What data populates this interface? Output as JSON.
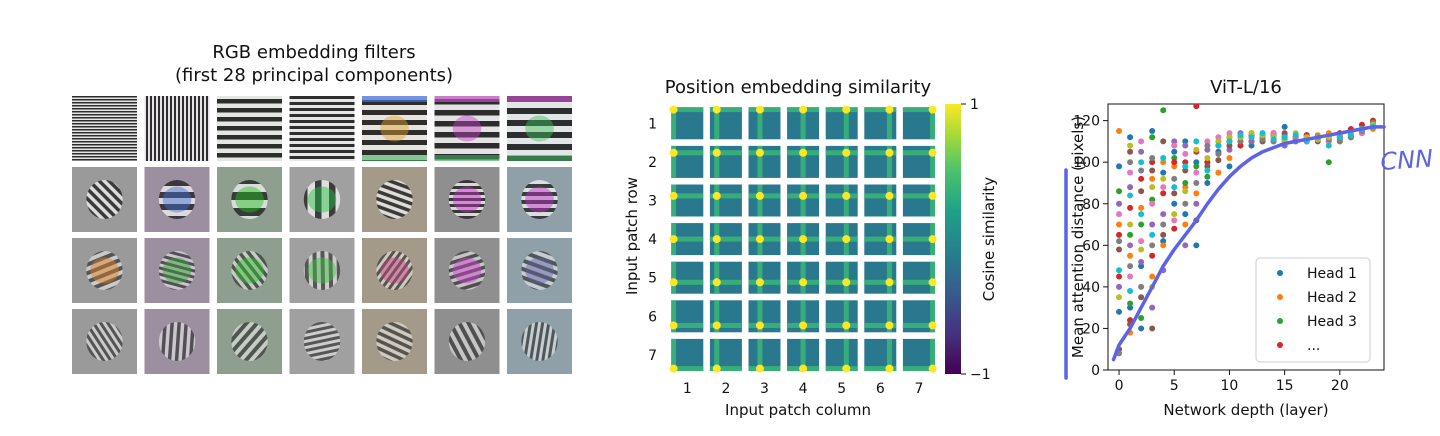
{
  "panels": {
    "filters": {
      "title_line1": "RGB embedding filters",
      "title_line2": "(first 28 principal components)",
      "rows": 4,
      "cols": 7
    },
    "position": {
      "title": "Position embedding similarity",
      "xlabel": "Input patch column",
      "ylabel": "Input patch row",
      "col_ticks": [
        "1",
        "2",
        "3",
        "4",
        "5",
        "6",
        "7"
      ],
      "row_ticks": [
        "1",
        "2",
        "3",
        "4",
        "5",
        "6",
        "7"
      ],
      "colorbar": {
        "label": "Cosine similarity",
        "max": "1",
        "min": "−1"
      }
    }
  },
  "annotation": {
    "handwritten_text": "CNN",
    "ink_color": "#5b63e6"
  },
  "chart_data": {
    "type": "scatter",
    "title": "ViT-L/16",
    "xlabel": "Network depth (layer)",
    "ylabel": "Mean attention distance (pixels)",
    "xlim": [
      -1,
      24
    ],
    "ylim": [
      0,
      128
    ],
    "xticks": [
      0,
      5,
      10,
      15,
      20
    ],
    "yticks": [
      0,
      20,
      40,
      60,
      80,
      100,
      120
    ],
    "legend_position": "bottom-right",
    "legend": [
      "Head 1",
      "Head 2",
      "Head 3",
      "..."
    ],
    "series": [
      {
        "name": "Head 1",
        "color": "#1f77b4",
        "points": [
          [
            0,
            28
          ],
          [
            0,
            98
          ],
          [
            1,
            30
          ],
          [
            1,
            112
          ],
          [
            2,
            50
          ],
          [
            2,
            20
          ],
          [
            3,
            115
          ],
          [
            4,
            62
          ],
          [
            4,
            95
          ],
          [
            5,
            80
          ],
          [
            5,
            105
          ],
          [
            6,
            75
          ],
          [
            6,
            110
          ],
          [
            7,
            60
          ],
          [
            7,
            100
          ],
          [
            8,
            90
          ],
          [
            9,
            105
          ],
          [
            10,
            98
          ],
          [
            11,
            112
          ],
          [
            12,
            108
          ],
          [
            13,
            112
          ],
          [
            14,
            114
          ],
          [
            15,
            117
          ],
          [
            16,
            110
          ],
          [
            17,
            113
          ],
          [
            18,
            112
          ],
          [
            19,
            112
          ],
          [
            20,
            113
          ],
          [
            21,
            115
          ],
          [
            22,
            116
          ],
          [
            23,
            117
          ]
        ]
      },
      {
        "name": "Head 2",
        "color": "#ff7f0e",
        "points": [
          [
            0,
            70
          ],
          [
            0,
            115
          ],
          [
            1,
            55
          ],
          [
            1,
            18
          ],
          [
            2,
            78
          ],
          [
            3,
            92
          ],
          [
            3,
            45
          ],
          [
            4,
            100
          ],
          [
            4,
            60
          ],
          [
            5,
            98
          ],
          [
            6,
            88
          ],
          [
            6,
            70
          ],
          [
            7,
            85
          ],
          [
            8,
            100
          ],
          [
            9,
            95
          ],
          [
            10,
            102
          ],
          [
            11,
            108
          ],
          [
            12,
            110
          ],
          [
            13,
            112
          ],
          [
            14,
            112
          ],
          [
            15,
            113
          ],
          [
            16,
            110
          ],
          [
            17,
            112
          ],
          [
            18,
            113
          ],
          [
            19,
            114
          ],
          [
            20,
            110
          ],
          [
            21,
            112
          ],
          [
            22,
            114
          ],
          [
            23,
            116
          ]
        ]
      },
      {
        "name": "Head 3",
        "color": "#2ca02c",
        "points": [
          [
            0,
            86
          ],
          [
            1,
            32
          ],
          [
            1,
            65
          ],
          [
            2,
            25
          ],
          [
            2,
            70
          ],
          [
            3,
            112
          ],
          [
            3,
            82
          ],
          [
            4,
            125
          ],
          [
            5,
            102
          ],
          [
            6,
            90
          ],
          [
            7,
            98
          ],
          [
            8,
            93
          ],
          [
            9,
            108
          ],
          [
            10,
            110
          ],
          [
            11,
            112
          ],
          [
            12,
            110
          ],
          [
            13,
            110
          ],
          [
            14,
            112
          ],
          [
            15,
            111
          ],
          [
            16,
            112
          ],
          [
            17,
            110
          ],
          [
            18,
            112
          ],
          [
            19,
            100
          ],
          [
            20,
            112
          ],
          [
            21,
            112
          ],
          [
            22,
            115
          ],
          [
            23,
            117
          ]
        ]
      },
      {
        "name": "...",
        "color": "#d62728",
        "points": [
          [
            0,
            65
          ],
          [
            0,
            45
          ],
          [
            1,
            78
          ],
          [
            1,
            24
          ],
          [
            2,
            92
          ],
          [
            3,
            100
          ],
          [
            3,
            55
          ],
          [
            4,
            85
          ],
          [
            5,
            100
          ],
          [
            5,
            68
          ],
          [
            6,
            100
          ],
          [
            7,
            127
          ],
          [
            7,
            105
          ],
          [
            8,
            100
          ],
          [
            9,
            104
          ],
          [
            10,
            110
          ],
          [
            11,
            108
          ],
          [
            12,
            112
          ],
          [
            13,
            113
          ],
          [
            14,
            114
          ],
          [
            15,
            112
          ],
          [
            16,
            112
          ],
          [
            17,
            113
          ],
          [
            18,
            112
          ],
          [
            19,
            110
          ],
          [
            20,
            114
          ],
          [
            21,
            116
          ],
          [
            22,
            118
          ],
          [
            23,
            120
          ]
        ]
      },
      {
        "name": "",
        "color": "#9467bd",
        "points": [
          [
            0,
            40
          ],
          [
            0,
            80
          ],
          [
            1,
            88
          ],
          [
            1,
            60
          ],
          [
            2,
            52
          ],
          [
            2,
            105
          ],
          [
            3,
            30
          ],
          [
            3,
            70
          ],
          [
            4,
            48
          ],
          [
            4,
            75
          ],
          [
            5,
            110
          ],
          [
            6,
            60
          ],
          [
            6,
            108
          ],
          [
            7,
            80
          ],
          [
            8,
            106
          ],
          [
            9,
            110
          ],
          [
            10,
            106
          ],
          [
            11,
            114
          ],
          [
            12,
            110
          ],
          [
            13,
            112
          ],
          [
            14,
            110
          ],
          [
            15,
            108
          ],
          [
            16,
            112
          ],
          [
            17,
            110
          ],
          [
            18,
            111
          ],
          [
            19,
            112
          ],
          [
            20,
            112
          ],
          [
            21,
            113
          ],
          [
            22,
            115
          ],
          [
            23,
            118
          ]
        ]
      },
      {
        "name": "",
        "color": "#8c564b",
        "points": [
          [
            0,
            10
          ],
          [
            0,
            58
          ],
          [
            1,
            22
          ],
          [
            1,
            105
          ],
          [
            2,
            35
          ],
          [
            2,
            86
          ],
          [
            3,
            20
          ],
          [
            3,
            96
          ],
          [
            4,
            65
          ],
          [
            4,
            110
          ],
          [
            5,
            85
          ],
          [
            6,
            96
          ],
          [
            7,
            72
          ],
          [
            8,
            98
          ],
          [
            9,
            101
          ],
          [
            10,
            108
          ],
          [
            11,
            110
          ],
          [
            12,
            113
          ],
          [
            13,
            110
          ],
          [
            14,
            113
          ],
          [
            15,
            114
          ],
          [
            16,
            111
          ],
          [
            17,
            112
          ],
          [
            18,
            110
          ],
          [
            19,
            110
          ],
          [
            20,
            111
          ],
          [
            21,
            112
          ],
          [
            22,
            114
          ],
          [
            23,
            117
          ]
        ]
      },
      {
        "name": "",
        "color": "#e377c2",
        "points": [
          [
            0,
            75
          ],
          [
            1,
            45
          ],
          [
            1,
            95
          ],
          [
            2,
            62
          ],
          [
            2,
            110
          ],
          [
            3,
            80
          ],
          [
            4,
            88
          ],
          [
            5,
            72
          ],
          [
            5,
            108
          ],
          [
            6,
            104
          ],
          [
            7,
            95
          ],
          [
            8,
            110
          ],
          [
            9,
            112
          ],
          [
            10,
            114
          ],
          [
            11,
            110
          ],
          [
            12,
            112
          ],
          [
            13,
            112
          ],
          [
            14,
            114
          ],
          [
            15,
            110
          ],
          [
            16,
            112
          ],
          [
            17,
            112
          ],
          [
            18,
            111
          ],
          [
            19,
            110
          ],
          [
            20,
            112
          ],
          [
            21,
            113
          ],
          [
            22,
            114
          ],
          [
            23,
            118
          ]
        ]
      },
      {
        "name": "",
        "color": "#7f7f7f",
        "points": [
          [
            0,
            8
          ],
          [
            0,
            62
          ],
          [
            1,
            50
          ],
          [
            1,
            100
          ],
          [
            2,
            40
          ],
          [
            2,
            96
          ],
          [
            3,
            60
          ],
          [
            3,
            102
          ],
          [
            4,
            70
          ],
          [
            5,
            92
          ],
          [
            6,
            80
          ],
          [
            7,
            90
          ],
          [
            8,
            108
          ],
          [
            9,
            104
          ],
          [
            10,
            112
          ],
          [
            11,
            110
          ],
          [
            12,
            114
          ],
          [
            13,
            111
          ],
          [
            14,
            110
          ],
          [
            15,
            112
          ],
          [
            16,
            110
          ],
          [
            17,
            111
          ],
          [
            18,
            112
          ],
          [
            19,
            111
          ],
          [
            20,
            110
          ],
          [
            21,
            112
          ],
          [
            22,
            115
          ],
          [
            23,
            119
          ]
        ]
      },
      {
        "name": "",
        "color": "#bcbd22",
        "points": [
          [
            0,
            35
          ],
          [
            1,
            70
          ],
          [
            1,
            108
          ],
          [
            2,
            58
          ],
          [
            3,
            88
          ],
          [
            3,
            40
          ],
          [
            4,
            92
          ],
          [
            5,
            75
          ],
          [
            6,
            86
          ],
          [
            7,
            106
          ],
          [
            8,
            102
          ],
          [
            9,
            110
          ],
          [
            10,
            112
          ],
          [
            11,
            112
          ],
          [
            12,
            114
          ],
          [
            13,
            113
          ],
          [
            14,
            112
          ],
          [
            15,
            110
          ],
          [
            16,
            114
          ],
          [
            17,
            112
          ],
          [
            18,
            111
          ],
          [
            19,
            112
          ],
          [
            20,
            113
          ],
          [
            21,
            114
          ],
          [
            22,
            116
          ],
          [
            23,
            118
          ]
        ]
      },
      {
        "name": "",
        "color": "#17becf",
        "points": [
          [
            0,
            48
          ],
          [
            1,
            38
          ],
          [
            1,
            84
          ],
          [
            2,
            75
          ],
          [
            2,
            100
          ],
          [
            3,
            65
          ],
          [
            4,
            102
          ],
          [
            5,
            88
          ],
          [
            6,
            98
          ],
          [
            7,
            110
          ],
          [
            8,
            96
          ],
          [
            9,
            108
          ],
          [
            10,
            110
          ],
          [
            11,
            113
          ],
          [
            12,
            112
          ],
          [
            13,
            114
          ],
          [
            14,
            111
          ],
          [
            15,
            112
          ],
          [
            16,
            113
          ],
          [
            17,
            110
          ],
          [
            18,
            112
          ],
          [
            19,
            108
          ],
          [
            20,
            112
          ],
          [
            21,
            113
          ],
          [
            22,
            116
          ],
          [
            23,
            117
          ]
        ]
      }
    ],
    "cnn_curve_label": "CNN",
    "cnn_curve": [
      [
        -0.5,
        5
      ],
      [
        0,
        12
      ],
      [
        1,
        20
      ],
      [
        2,
        30
      ],
      [
        3,
        40
      ],
      [
        4,
        50
      ],
      [
        5,
        58
      ],
      [
        6,
        65
      ],
      [
        7,
        72
      ],
      [
        8,
        80
      ],
      [
        9,
        87
      ],
      [
        10,
        93
      ],
      [
        11,
        98
      ],
      [
        12,
        102
      ],
      [
        13,
        105
      ],
      [
        14,
        107
      ],
      [
        15,
        109
      ],
      [
        16,
        110
      ],
      [
        17,
        111
      ],
      [
        18,
        112
      ],
      [
        19,
        113
      ],
      [
        20,
        114
      ],
      [
        21,
        115
      ],
      [
        22,
        116
      ],
      [
        23,
        117
      ],
      [
        24,
        117
      ]
    ]
  }
}
